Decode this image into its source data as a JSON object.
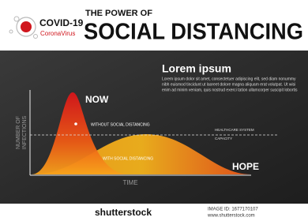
{
  "header": {
    "logo_title": "COVID-19",
    "logo_subtitle": "CoronaVirus",
    "kicker": "THE POWER OF",
    "title": "SOCIAL DISTANCING"
  },
  "panel": {
    "heading": "Lorem ipsum",
    "body_lines": [
      "Lorem ipsum dolor sit amet, consectetuer adipiscing elit, sed diam nonummy",
      "nibh euismod tincidunt ut laoreet dolore magna aliquam erat volutpat. Ut wisi",
      "enim ad minim veniam, quis nostrud exerci tation ullamcorper suscipit lobortis"
    ],
    "y_axis_label_lines": [
      "NUMBER OF",
      "INFECTIONS"
    ],
    "x_axis_label": "TIME",
    "peak_label": "NOW",
    "tail_label": "HOPE",
    "curve_high_label": "WITHOUT SOCIAL DISTANCING",
    "curve_low_label": "WITH SOCIAL DISTANCING",
    "capacity_label_lines": [
      "HEALTHCARE SYSTEM",
      "CAPACITY"
    ]
  },
  "footer": {
    "brand": "shutterstock",
    "image_id": "IMAGE ID: 1677170107",
    "site": "www.shutterstock.com"
  }
}
